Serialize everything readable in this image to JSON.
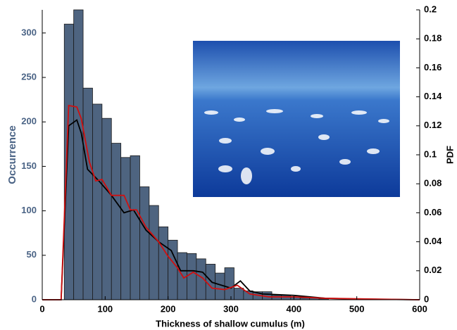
{
  "chart_data": {
    "type": "histogram",
    "xlabel": "Thickness of shallow cumulus (m)",
    "ylabel": "Occurrence",
    "y2label": "PDF",
    "bins": [
      35,
      50,
      65,
      80,
      95,
      110,
      125,
      140,
      155,
      170,
      185,
      200,
      215,
      230,
      245,
      260,
      275,
      290,
      305,
      320,
      335,
      350,
      365,
      380,
      395,
      410,
      425,
      440,
      455
    ],
    "values": [
      310,
      326,
      238,
      220,
      204,
      176,
      160,
      162,
      127,
      106,
      82,
      67,
      53,
      52,
      46,
      40,
      30,
      36,
      13,
      10,
      9,
      9,
      5,
      5,
      3,
      2,
      2,
      1
    ],
    "color": "#4e6480",
    "ylabel_color": "#4a6385",
    "xlim": [
      0,
      600
    ],
    "xticks": [
      0,
      100,
      200,
      300,
      400,
      500,
      600
    ],
    "ylim": [
      0,
      326
    ],
    "yticks": [
      0,
      50,
      100,
      150,
      200,
      250,
      300
    ],
    "y2lim": [
      0,
      0.2
    ],
    "y2ticks": [
      0,
      0.02,
      0.04,
      0.06,
      0.08,
      0.1,
      0.12,
      0.14,
      0.16,
      0.18,
      0.2
    ],
    "series": [
      {
        "color": "#000000",
        "axis": "y2",
        "x": [
          0,
          30,
          42,
          55,
          62,
          72,
          90,
          110,
          130,
          145,
          165,
          185,
          205,
          220,
          240,
          255,
          270,
          285,
          300,
          315,
          330,
          350,
          400,
          450,
          500,
          600
        ],
        "values": [
          0,
          0,
          0.12,
          0.124,
          0.115,
          0.09,
          0.082,
          0.072,
          0.06,
          0.062,
          0.048,
          0.04,
          0.034,
          0.02,
          0.02,
          0.019,
          0.012,
          0.01,
          0.008,
          0.013,
          0.006,
          0.004,
          0.003,
          0.001,
          0.0005,
          0
        ]
      },
      {
        "color": "#d01010",
        "axis": "y2",
        "x": [
          0,
          30,
          42,
          55,
          62,
          75,
          85,
          95,
          110,
          130,
          140,
          150,
          165,
          185,
          200,
          215,
          225,
          240,
          255,
          270,
          290,
          310,
          330,
          360,
          400,
          450,
          600
        ],
        "values": [
          0,
          0,
          0.134,
          0.133,
          0.125,
          0.095,
          0.082,
          0.083,
          0.072,
          0.072,
          0.062,
          0.062,
          0.05,
          0.04,
          0.03,
          0.022,
          0.015,
          0.019,
          0.015,
          0.008,
          0.007,
          0.01,
          0.004,
          0.002,
          0.002,
          0.001,
          0
        ]
      }
    ]
  }
}
